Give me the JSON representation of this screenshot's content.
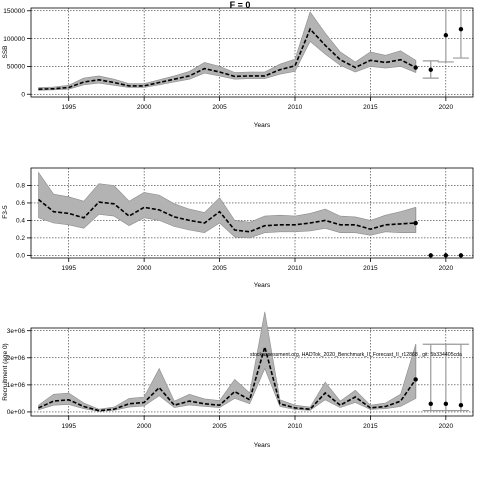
{
  "figure": {
    "title": "F = 0",
    "annotation": "stockassessment.org, HADTok_2020_Benchmark_II_Forecast_II_r12868 , git: 5b334405cda"
  },
  "chart_data": [
    {
      "type": "line",
      "title": "F = 0",
      "xlabel": "Years",
      "ylabel": "SSB",
      "xlim": [
        1992.5,
        2021.8
      ],
      "ylim": [
        -5000,
        155000
      ],
      "xticks": [
        1995,
        2000,
        2005,
        2010,
        2015,
        2020
      ],
      "yticks": [
        0,
        50000,
        100000,
        150000
      ],
      "grid": true,
      "series": [
        {
          "x": [
            1993,
            1994,
            1995,
            1996,
            1997,
            1998,
            1999,
            2000,
            2001,
            2002,
            2003,
            2004,
            2005,
            2006,
            2007,
            2008,
            2009,
            2010,
            2011,
            2012,
            2013,
            2014,
            2015,
            2016,
            2017,
            2018
          ],
          "values": [
            9000,
            10000,
            12000,
            22000,
            26000,
            21000,
            15000,
            15000,
            21000,
            27000,
            33000,
            46000,
            40000,
            32000,
            33000,
            33000,
            44000,
            51000,
            117000,
            88000,
            62000,
            48000,
            61000,
            57000,
            62000,
            48000
          ],
          "lower": [
            7000,
            8000,
            9000,
            17000,
            20000,
            16000,
            12000,
            12000,
            17000,
            22000,
            27000,
            38000,
            33000,
            27000,
            28000,
            28000,
            36000,
            41000,
            95000,
            72000,
            52000,
            40000,
            50000,
            47000,
            50000,
            39000
          ],
          "upper": [
            12000,
            13000,
            16000,
            29000,
            33000,
            27000,
            19000,
            19000,
            26000,
            33000,
            41000,
            57000,
            50000,
            39000,
            40000,
            40000,
            54000,
            63000,
            148000,
            110000,
            76000,
            58000,
            76000,
            70000,
            78000,
            61000
          ]
        }
      ],
      "forecast": {
        "x": [
          2019,
          2020,
          2021
        ],
        "values": [
          44000,
          106000,
          117000
        ],
        "lower": [
          29000,
          58000,
          65000
        ],
        "upper": [
          60000,
          165000,
          175000
        ]
      }
    },
    {
      "type": "line",
      "xlabel": "Years",
      "ylabel": "F3-5",
      "xlim": [
        1992.5,
        2021.8
      ],
      "ylim": [
        -0.03,
        1.0
      ],
      "xticks": [
        1995,
        2000,
        2005,
        2010,
        2015,
        2020
      ],
      "yticks": [
        0.0,
        0.2,
        0.4,
        0.6,
        0.8
      ],
      "grid": true,
      "series": [
        {
          "x": [
            1993,
            1994,
            1995,
            1996,
            1997,
            1998,
            1999,
            2000,
            2001,
            2002,
            2003,
            2004,
            2005,
            2006,
            2007,
            2008,
            2009,
            2010,
            2011,
            2012,
            2013,
            2014,
            2015,
            2016,
            2017,
            2018
          ],
          "values": [
            0.64,
            0.5,
            0.48,
            0.43,
            0.61,
            0.59,
            0.45,
            0.55,
            0.52,
            0.44,
            0.4,
            0.37,
            0.5,
            0.29,
            0.27,
            0.34,
            0.35,
            0.35,
            0.37,
            0.4,
            0.35,
            0.35,
            0.3,
            0.35,
            0.36,
            0.37
          ],
          "lower": [
            0.43,
            0.37,
            0.35,
            0.31,
            0.47,
            0.45,
            0.34,
            0.43,
            0.4,
            0.33,
            0.29,
            0.26,
            0.37,
            0.21,
            0.2,
            0.26,
            0.27,
            0.27,
            0.28,
            0.31,
            0.26,
            0.26,
            0.23,
            0.27,
            0.26,
            0.26
          ],
          "upper": [
            0.95,
            0.7,
            0.67,
            0.62,
            0.82,
            0.8,
            0.62,
            0.72,
            0.69,
            0.59,
            0.53,
            0.49,
            0.66,
            0.4,
            0.38,
            0.45,
            0.46,
            0.45,
            0.48,
            0.53,
            0.45,
            0.44,
            0.4,
            0.46,
            0.5,
            0.55
          ]
        }
      ],
      "forecast": {
        "x": [
          2019,
          2020,
          2021
        ],
        "values": [
          0.0,
          0.0,
          0.0
        ]
      }
    },
    {
      "type": "line",
      "xlabel": "Years",
      "ylabel": "Recruitment (age 0)",
      "xlim": [
        1992.5,
        2021.8
      ],
      "ylim": [
        -150000,
        3100000
      ],
      "xticks": [
        1995,
        2000,
        2005,
        2010,
        2015,
        2020
      ],
      "ytick_labels": [
        "0e+00",
        "1e+06",
        "2e+06",
        "3e+06"
      ],
      "yticks": [
        0,
        1000000,
        2000000,
        3000000
      ],
      "grid": true,
      "series": [
        {
          "x": [
            1993,
            1994,
            1995,
            1996,
            1997,
            1998,
            1999,
            2000,
            2001,
            2002,
            2003,
            2004,
            2005,
            2006,
            2007,
            2008,
            2009,
            2010,
            2011,
            2012,
            2013,
            2014,
            2015,
            2016,
            2017,
            2018
          ],
          "values": [
            150000,
            400000,
            450000,
            200000,
            50000,
            100000,
            300000,
            350000,
            900000,
            250000,
            400000,
            300000,
            250000,
            750000,
            450000,
            2400000,
            300000,
            150000,
            100000,
            700000,
            250000,
            550000,
            150000,
            200000,
            400000,
            1200000
          ],
          "lower": [
            80000,
            250000,
            280000,
            120000,
            25000,
            60000,
            180000,
            220000,
            600000,
            160000,
            260000,
            200000,
            160000,
            500000,
            300000,
            1600000,
            200000,
            90000,
            60000,
            450000,
            160000,
            350000,
            90000,
            120000,
            200000,
            500000
          ],
          "upper": [
            250000,
            650000,
            700000,
            330000,
            100000,
            180000,
            500000,
            550000,
            1600000,
            400000,
            650000,
            480000,
            420000,
            1200000,
            700000,
            3700000,
            450000,
            250000,
            180000,
            1100000,
            400000,
            800000,
            250000,
            330000,
            650000,
            2500000
          ]
        }
      ],
      "forecast": {
        "x": [
          2019,
          2020,
          2021
        ],
        "values": [
          300000,
          300000,
          250000
        ],
        "lower": [
          50000,
          50000,
          50000
        ],
        "upper": [
          2500000,
          2500000,
          2500000
        ]
      }
    }
  ]
}
